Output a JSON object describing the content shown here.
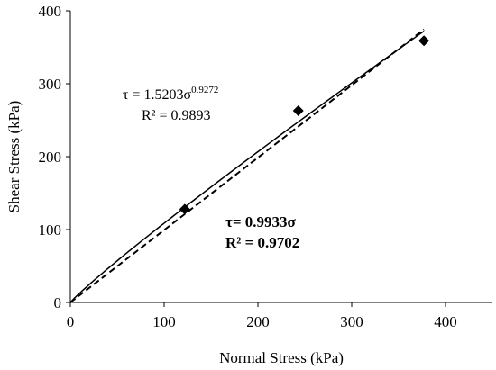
{
  "chart_data": {
    "type": "scatter",
    "xlabel": "Normal Stress (kPa)",
    "ylabel": "Shear Stress (kPa)",
    "xlim": [
      0,
      450
    ],
    "ylim": [
      0,
      400
    ],
    "xticks": [
      "0",
      "100",
      "200",
      "300",
      "400"
    ],
    "yticks": [
      "0",
      "100",
      "200",
      "300",
      "400"
    ],
    "grid": false,
    "series": [
      {
        "style": "markers",
        "marker": "diamond",
        "x": [
          122,
          243,
          377
        ],
        "y": [
          128,
          263,
          359
        ]
      },
      {
        "style": "solid-line",
        "fit": "power",
        "coefficient": 1.5203,
        "exponent": 0.9272,
        "x_range": [
          0,
          377
        ]
      },
      {
        "style": "dashed-line",
        "fit": "linear",
        "slope": 0.9933,
        "x_range": [
          0,
          377
        ]
      }
    ],
    "annotations": {
      "power_eq_prefix": "τ = 1.5203σ",
      "power_eq_exponent": "0.9272",
      "power_r2": "R² = 0.9893",
      "linear_eq": "τ= 0.9933σ",
      "linear_r2": "R² = 0.9702"
    }
  }
}
